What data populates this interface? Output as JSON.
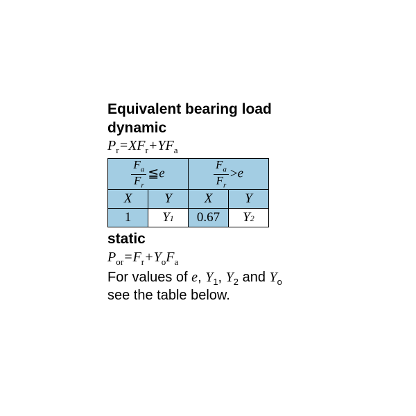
{
  "heading": {
    "line1": "Equivalent bearing load",
    "line2": "dynamic"
  },
  "dynamic_formula": {
    "lhs_var": "P",
    "lhs_sub": "r",
    "eq": "=",
    "t1_coef": "X",
    "t1_var": "F",
    "t1_sub": "r",
    "plus": "+",
    "t2_coef": "Y",
    "t2_var": "F",
    "t2_sub": "a"
  },
  "table": {
    "hdr_left": {
      "num_var": "F",
      "num_sub": "a",
      "den_var": "F",
      "den_sub": "r",
      "op": "≦",
      "rhs": "e"
    },
    "hdr_right": {
      "num_var": "F",
      "num_sub": "a",
      "den_var": "F",
      "den_sub": "r",
      "op": ">",
      "rhs": "e"
    },
    "xy": {
      "x": "X",
      "y": "Y"
    },
    "vals": {
      "c1": "1",
      "c2_var": "Y",
      "c2_sub": "1",
      "c3": "0.67",
      "c4_var": "Y",
      "c4_sub": "2"
    },
    "colors": {
      "light": "#a3cde3",
      "white": "#ffffff"
    }
  },
  "static": {
    "label": "static",
    "formula": {
      "lhs_var": "P",
      "lhs_sub": "or",
      "eq": "=",
      "t1_var": "F",
      "t1_sub": "r",
      "plus": "+",
      "t2_coef": "Y",
      "t2_coef_sub": "o",
      "t2_var": "F",
      "t2_sub": "a"
    }
  },
  "footer": {
    "pre": "For values of ",
    "e": "e",
    "c1": ", ",
    "y1": "Y",
    "y1s": "1",
    "c2": ", ",
    "y2": "Y",
    "y2s": "2",
    "c3": " and ",
    "y0": "Y",
    "y0s": "o",
    "post": "see the table below."
  }
}
